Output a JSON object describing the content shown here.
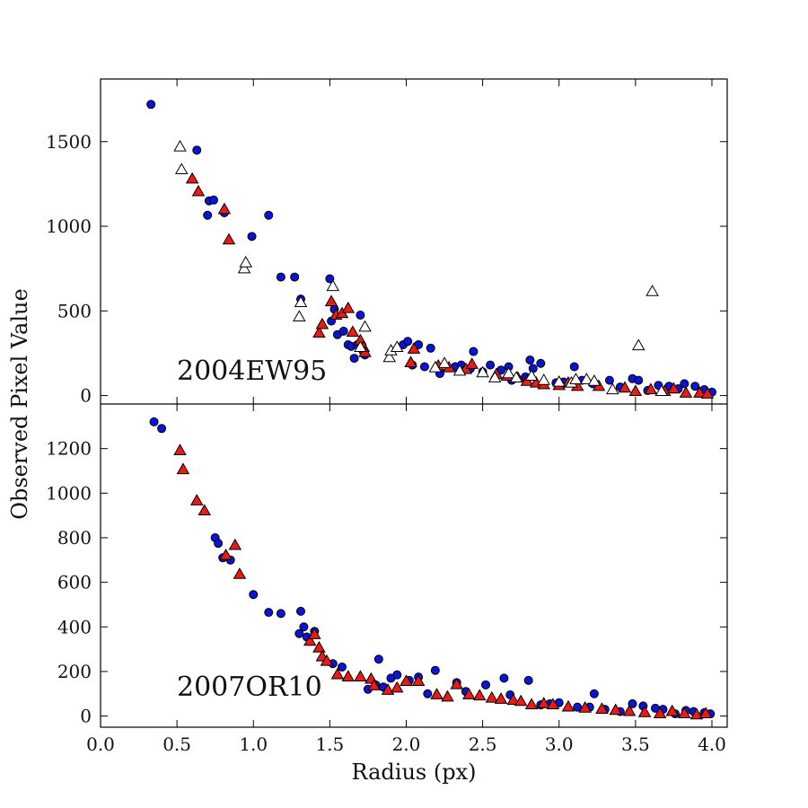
{
  "chart_data": {
    "type": "scatter",
    "xlabel": "Radius (px)",
    "ylabel": "Observed Pixel Value",
    "x_ticks": [
      "0.0",
      "0.5",
      "1.0",
      "1.5",
      "2.0",
      "2.5",
      "3.0",
      "3.5",
      "4.0"
    ],
    "colors": {
      "blue": "#0a14d8",
      "red": "#ea1b16",
      "white": "#ffffff",
      "black": "#000000"
    },
    "panels": [
      {
        "title": "2004EW95",
        "xlim": [
          0,
          4.1
        ],
        "ylim": [
          -50,
          1870
        ],
        "y_ticks": [
          "0",
          "500",
          "1000",
          "1500"
        ],
        "series": [
          {
            "name": "blue-circles",
            "marker": "circle",
            "fill": "blue",
            "points": [
              [
                0.33,
                1720
              ],
              [
                0.63,
                1450
              ],
              [
                0.7,
                1065
              ],
              [
                0.71,
                1150
              ],
              [
                0.74,
                1155
              ],
              [
                0.81,
                1080
              ],
              [
                0.99,
                940
              ],
              [
                1.1,
                1065
              ],
              [
                1.18,
                700
              ],
              [
                1.27,
                700
              ],
              [
                1.31,
                570
              ],
              [
                1.5,
                690
              ],
              [
                1.51,
                440
              ],
              [
                1.53,
                510
              ],
              [
                1.55,
                360
              ],
              [
                1.59,
                380
              ],
              [
                1.62,
                300
              ],
              [
                1.64,
                290
              ],
              [
                1.66,
                220
              ],
              [
                1.68,
                300
              ],
              [
                1.7,
                475
              ],
              [
                1.72,
                260
              ],
              [
                1.73,
                240
              ],
              [
                1.98,
                300
              ],
              [
                2.01,
                320
              ],
              [
                2.04,
                180
              ],
              [
                2.08,
                300
              ],
              [
                2.12,
                170
              ],
              [
                2.16,
                280
              ],
              [
                2.22,
                130
              ],
              [
                2.32,
                170
              ],
              [
                2.36,
                180
              ],
              [
                2.42,
                160
              ],
              [
                2.44,
                260
              ],
              [
                2.5,
                140
              ],
              [
                2.55,
                180
              ],
              [
                2.62,
                150
              ],
              [
                2.67,
                170
              ],
              [
                2.69,
                90
              ],
              [
                2.78,
                110
              ],
              [
                2.81,
                210
              ],
              [
                2.83,
                160
              ],
              [
                2.88,
                190
              ],
              [
                2.98,
                75
              ],
              [
                3.03,
                80
              ],
              [
                3.1,
                170
              ],
              [
                3.15,
                90
              ],
              [
                3.22,
                70
              ],
              [
                3.33,
                90
              ],
              [
                3.4,
                50
              ],
              [
                3.48,
                100
              ],
              [
                3.52,
                90
              ],
              [
                3.58,
                30
              ],
              [
                3.65,
                60
              ],
              [
                3.72,
                55
              ],
              [
                3.78,
                40
              ],
              [
                3.82,
                70
              ],
              [
                3.89,
                55
              ],
              [
                3.95,
                35
              ],
              [
                4.0,
                20
              ]
            ]
          },
          {
            "name": "red-triangles",
            "marker": "triangle",
            "fill": "red",
            "points": [
              [
                0.6,
                1285
              ],
              [
                0.64,
                1210
              ],
              [
                0.81,
                1105
              ],
              [
                0.84,
                925
              ],
              [
                1.43,
                375
              ],
              [
                1.45,
                425
              ],
              [
                1.51,
                560
              ],
              [
                1.54,
                480
              ],
              [
                1.58,
                490
              ],
              [
                1.62,
                520
              ],
              [
                1.65,
                380
              ],
              [
                1.7,
                330
              ],
              [
                1.72,
                290
              ],
              [
                1.73,
                260
              ],
              [
                2.03,
                200
              ],
              [
                2.05,
                280
              ],
              [
                2.21,
                180
              ],
              [
                2.28,
                170
              ],
              [
                2.39,
                160
              ],
              [
                2.43,
                190
              ],
              [
                2.59,
                130
              ],
              [
                2.66,
                120
              ],
              [
                2.73,
                110
              ],
              [
                2.79,
                90
              ],
              [
                2.85,
                80
              ],
              [
                2.9,
                70
              ],
              [
                3.0,
                65
              ],
              [
                3.06,
                80
              ],
              [
                3.12,
                60
              ],
              [
                3.26,
                60
              ],
              [
                3.43,
                50
              ],
              [
                3.5,
                30
              ],
              [
                3.6,
                40
              ],
              [
                3.69,
                30
              ],
              [
                3.75,
                45
              ],
              [
                3.83,
                20
              ],
              [
                3.92,
                20
              ],
              [
                3.97,
                15
              ]
            ]
          },
          {
            "name": "white-triangles",
            "marker": "triangle",
            "fill": "white",
            "points": [
              [
                0.52,
                1475
              ],
              [
                0.53,
                1340
              ],
              [
                0.94,
                755
              ],
              [
                0.95,
                790
              ],
              [
                1.3,
                470
              ],
              [
                1.31,
                555
              ],
              [
                1.52,
                650
              ],
              [
                1.7,
                290
              ],
              [
                1.73,
                410
              ],
              [
                1.89,
                230
              ],
              [
                1.9,
                270
              ],
              [
                1.94,
                290
              ],
              [
                2.19,
                170
              ],
              [
                2.25,
                195
              ],
              [
                2.35,
                150
              ],
              [
                2.5,
                140
              ],
              [
                2.58,
                110
              ],
              [
                2.67,
                135
              ],
              [
                2.72,
                110
              ],
              [
                2.82,
                120
              ],
              [
                2.9,
                95
              ],
              [
                3.0,
                85
              ],
              [
                3.08,
                80
              ],
              [
                3.11,
                100
              ],
              [
                3.18,
                100
              ],
              [
                3.23,
                90
              ],
              [
                3.35,
                40
              ],
              [
                3.52,
                300
              ],
              [
                3.61,
                620
              ],
              [
                3.67,
                30
              ]
            ]
          }
        ]
      },
      {
        "title": "2007OR10",
        "xlim": [
          0,
          4.1
        ],
        "ylim": [
          -50,
          1400
        ],
        "y_ticks": [
          "0",
          "200",
          "400",
          "600",
          "800",
          "1000",
          "1200"
        ],
        "series": [
          {
            "name": "blue-circles",
            "marker": "circle",
            "fill": "blue",
            "points": [
              [
                0.35,
                1320
              ],
              [
                0.4,
                1290
              ],
              [
                0.75,
                800
              ],
              [
                0.77,
                775
              ],
              [
                0.8,
                710
              ],
              [
                0.85,
                700
              ],
              [
                1.0,
                545
              ],
              [
                1.1,
                465
              ],
              [
                1.18,
                460
              ],
              [
                1.3,
                370
              ],
              [
                1.31,
                470
              ],
              [
                1.33,
                400
              ],
              [
                1.35,
                355
              ],
              [
                1.4,
                380
              ],
              [
                1.52,
                235
              ],
              [
                1.58,
                220
              ],
              [
                1.75,
                120
              ],
              [
                1.8,
                140
              ],
              [
                1.82,
                255
              ],
              [
                1.85,
                130
              ],
              [
                1.9,
                170
              ],
              [
                1.94,
                185
              ],
              [
                2.02,
                160
              ],
              [
                2.08,
                175
              ],
              [
                2.14,
                100
              ],
              [
                2.19,
                205
              ],
              [
                2.33,
                150
              ],
              [
                2.39,
                110
              ],
              [
                2.52,
                140
              ],
              [
                2.64,
                170
              ],
              [
                2.68,
                95
              ],
              [
                2.8,
                160
              ],
              [
                2.88,
                50
              ],
              [
                2.94,
                55
              ],
              [
                3.0,
                60
              ],
              [
                3.12,
                40
              ],
              [
                3.2,
                40
              ],
              [
                3.23,
                100
              ],
              [
                3.3,
                30
              ],
              [
                3.4,
                20
              ],
              [
                3.48,
                55
              ],
              [
                3.55,
                45
              ],
              [
                3.63,
                35
              ],
              [
                3.68,
                30
              ],
              [
                3.76,
                10
              ],
              [
                3.83,
                25
              ],
              [
                3.88,
                20
              ],
              [
                3.95,
                15
              ],
              [
                3.99,
                10
              ]
            ]
          },
          {
            "name": "red-triangles",
            "marker": "triangle",
            "fill": "red",
            "points": [
              [
                0.52,
                1195
              ],
              [
                0.54,
                1110
              ],
              [
                0.63,
                970
              ],
              [
                0.68,
                925
              ],
              [
                0.82,
                725
              ],
              [
                0.88,
                770
              ],
              [
                0.91,
                640
              ],
              [
                1.37,
                340
              ],
              [
                1.4,
                370
              ],
              [
                1.43,
                310
              ],
              [
                1.45,
                270
              ],
              [
                1.48,
                250
              ],
              [
                1.55,
                190
              ],
              [
                1.62,
                180
              ],
              [
                1.7,
                180
              ],
              [
                1.77,
                170
              ],
              [
                1.79,
                140
              ],
              [
                1.88,
                120
              ],
              [
                1.94,
                130
              ],
              [
                2.0,
                160
              ],
              [
                2.08,
                160
              ],
              [
                2.2,
                100
              ],
              [
                2.27,
                90
              ],
              [
                2.33,
                145
              ],
              [
                2.41,
                100
              ],
              [
                2.48,
                95
              ],
              [
                2.56,
                85
              ],
              [
                2.62,
                80
              ],
              [
                2.7,
                75
              ],
              [
                2.75,
                70
              ],
              [
                2.82,
                55
              ],
              [
                2.9,
                60
              ],
              [
                2.96,
                55
              ],
              [
                3.06,
                45
              ],
              [
                3.17,
                40
              ],
              [
                3.28,
                35
              ],
              [
                3.37,
                30
              ],
              [
                3.46,
                25
              ],
              [
                3.56,
                20
              ],
              [
                3.66,
                15
              ],
              [
                3.74,
                25
              ],
              [
                3.82,
                15
              ],
              [
                3.9,
                10
              ],
              [
                3.96,
                15
              ]
            ]
          }
        ]
      }
    ]
  }
}
